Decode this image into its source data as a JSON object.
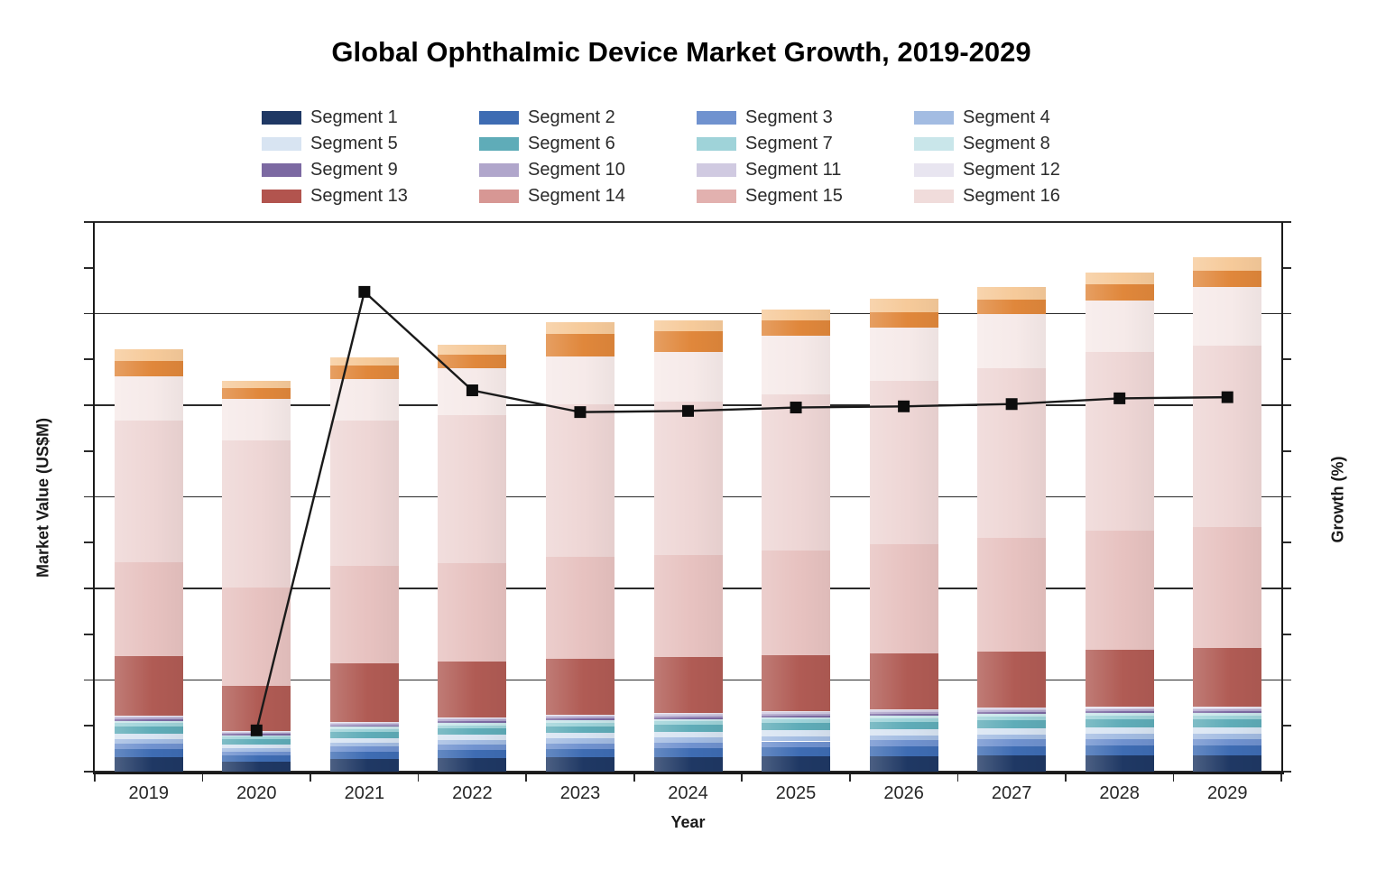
{
  "title": "Global Ophthalmic Device Market Growth, 2019-2029",
  "legend": {
    "items": [
      {
        "label": "Segment 1",
        "color": "#1F3864"
      },
      {
        "label": "Segment 2",
        "color": "#3E6CB3"
      },
      {
        "label": "Segment 3",
        "color": "#7092CF"
      },
      {
        "label": "Segment 4",
        "color": "#A3BCE2"
      },
      {
        "label": "Segment 5",
        "color": "#D8E4F2"
      },
      {
        "label": "Segment 6",
        "color": "#5FACB8"
      },
      {
        "label": "Segment 7",
        "color": "#9FD3D9"
      },
      {
        "label": "Segment 8",
        "color": "#C9E6EA"
      },
      {
        "label": "Segment 9",
        "color": "#7C69A2"
      },
      {
        "label": "Segment 10",
        "color": "#B0A6CB"
      },
      {
        "label": "Segment 11",
        "color": "#D0CAE1"
      },
      {
        "label": "Segment 12",
        "color": "#E8E5F0"
      },
      {
        "label": "Segment 13",
        "color": "#B2544E"
      },
      {
        "label": "Segment 14",
        "color": "#D79794"
      },
      {
        "label": "Segment 15",
        "color": "#E2B1AF"
      },
      {
        "label": "Segment 16",
        "color": "#F0DCDB"
      }
    ]
  },
  "axes": {
    "x_title": "Year",
    "left_title": "Market Value (US$M)",
    "right_title": "Growth (%)",
    "numeric_tick_labels_shown": false
  },
  "chart_data": {
    "type": "bar",
    "subtype": "stacked-bars-with-growth-line",
    "title": "Global Ophthalmic Device Market Growth, 2019-2029",
    "xlabel": "Year",
    "ylabel_left": "Market Value (US$M)",
    "ylabel_right": "Growth (%)",
    "categories": [
      "2019",
      "2020",
      "2021",
      "2022",
      "2023",
      "2024",
      "2025",
      "2026",
      "2027",
      "2028",
      "2029"
    ],
    "ylim_left": [
      0,
      6000
    ],
    "ylim_right": [
      -24,
      24
    ],
    "gridlines": "horizontal-major-7-lines-with-minor-ticks",
    "legend_position": "top",
    "bar_totals_estimated": [
      4611,
      4266,
      4522,
      4660,
      4906,
      4926,
      5044,
      5163,
      5291,
      5448,
      5616
    ],
    "series": [
      {
        "name": "Segment 1",
        "color": "#1F3864",
        "values": [
          154,
          111,
          136,
          147,
          155,
          160,
          165,
          170,
          175,
          177,
          177
        ]
      },
      {
        "name": "Segment 2",
        "color": "#3E6CB3",
        "values": [
          92,
          66,
          81,
          89,
          93,
          96,
          99,
          102,
          105,
          106,
          106
        ]
      },
      {
        "name": "Segment 3",
        "color": "#7092CF",
        "values": [
          61,
          44,
          54,
          59,
          62,
          64,
          66,
          68,
          70,
          71,
          71
        ]
      },
      {
        "name": "Segment 4",
        "color": "#A3BCE2",
        "values": [
          49,
          35,
          43,
          47,
          50,
          51,
          53,
          54,
          56,
          57,
          57
        ]
      },
      {
        "name": "Segment 5",
        "color": "#D8E4F2",
        "values": [
          61,
          44,
          54,
          59,
          62,
          64,
          66,
          68,
          70,
          71,
          71
        ]
      },
      {
        "name": "Segment 6",
        "color": "#5FACB8",
        "values": [
          73,
          53,
          65,
          71,
          75,
          77,
          79,
          82,
          84,
          85,
          85
        ]
      },
      {
        "name": "Segment 7",
        "color": "#9FD3D9",
        "values": [
          37,
          27,
          33,
          35,
          37,
          38,
          40,
          41,
          42,
          43,
          43
        ]
      },
      {
        "name": "Segment 8",
        "color": "#C9E6EA",
        "values": [
          24,
          18,
          22,
          24,
          25,
          26,
          26,
          27,
          28,
          28,
          28
        ]
      },
      {
        "name": "Segment 9",
        "color": "#7C69A2",
        "values": [
          18,
          13,
          16,
          18,
          19,
          19,
          20,
          20,
          21,
          21,
          21
        ]
      },
      {
        "name": "Segment 10",
        "color": "#B0A6CB",
        "values": [
          18,
          13,
          16,
          18,
          19,
          19,
          20,
          20,
          21,
          21,
          21
        ]
      },
      {
        "name": "Segment 11",
        "color": "#D0CAE1",
        "values": [
          12,
          9,
          11,
          12,
          12,
          13,
          13,
          14,
          14,
          14,
          14
        ]
      },
      {
        "name": "Segment 12",
        "color": "#E8E5F0",
        "values": [
          12,
          9,
          11,
          12,
          12,
          13,
          13,
          14,
          15,
          15,
          15
        ]
      },
      {
        "name": "Segment 13",
        "color": "#B2544E",
        "bar_color": "#B05B54",
        "values": [
          650,
          493,
          640,
          611,
          610,
          611,
          611,
          611,
          610,
          621,
          641
        ]
      },
      {
        "name": "Segment 14",
        "color": "#D79794",
        "bar_color": "#E7C2C0",
        "values": [
          1028,
          1072,
          1060,
          1076,
          1112,
          1115,
          1139,
          1190,
          1238,
          1300,
          1320
        ]
      },
      {
        "name": "Segment 15",
        "color": "#E2B1AF",
        "bar_color": "#EED6D5",
        "values": [
          1543,
          1608,
          1590,
          1614,
          1667,
          1673,
          1708,
          1785,
          1856,
          1951,
          1980
        ]
      },
      {
        "name": "Segment 16",
        "color": "#F0DCDB",
        "bar_color": "#F6EAE9",
        "values": [
          483,
          453,
          454,
          512,
          522,
          542,
          641,
          581,
          591,
          562,
          641
        ]
      },
      {
        "name": "unlabeled-orange-band",
        "color": "#E0873B",
        "in_legend": false,
        "values": [
          168,
          118,
          148,
          148,
          246,
          227,
          167,
          168,
          158,
          177,
          177
        ]
      },
      {
        "name": "unlabeled-peach-band",
        "color": "#F6CA9A",
        "in_legend": false,
        "values": [
          128,
          79,
          88,
          108,
          128,
          118,
          118,
          148,
          138,
          128,
          148
        ]
      }
    ],
    "line_series": {
      "name": "Growth (%)",
      "axis": "right",
      "color": "#1A1A1A",
      "marker": "square",
      "values": [
        null,
        -20.4,
        17.9,
        9.3,
        7.4,
        7.5,
        7.8,
        7.9,
        8.1,
        8.6,
        8.7
      ]
    }
  }
}
